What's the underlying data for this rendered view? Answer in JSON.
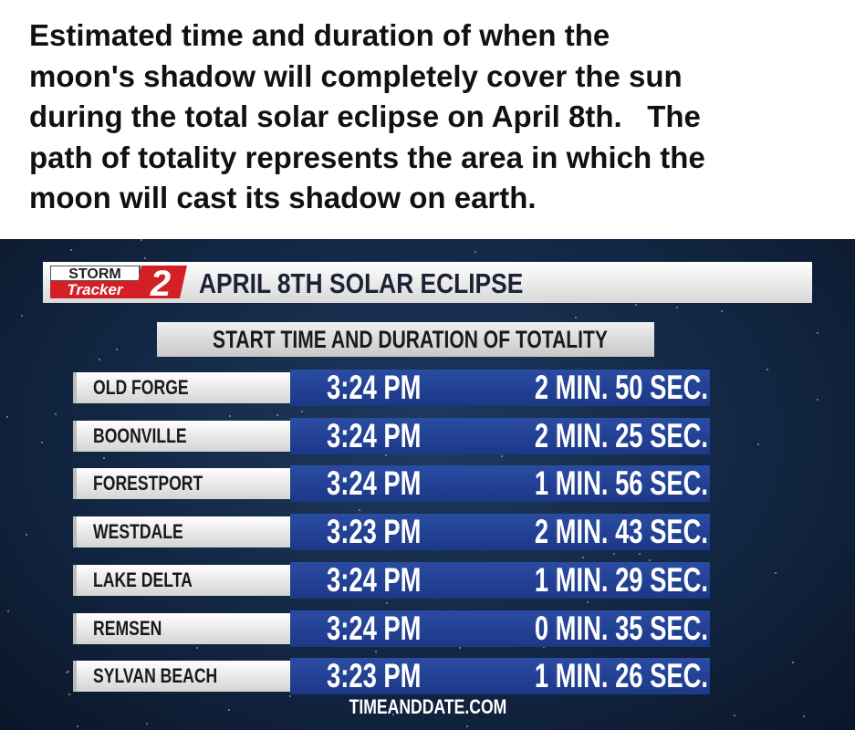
{
  "caption_lines": [
    "Estimated time and duration of when the",
    "moon's shadow will completely cover the sun",
    "during the total solar eclipse on April 8th.   The",
    "path of totality represents the area in which the",
    "moon will cast its shadow on earth."
  ],
  "graphic": {
    "logo": {
      "line1": "STORM",
      "line2": "Tracker",
      "number": "2"
    },
    "title": "APRIL 8TH SOLAR ECLIPSE",
    "subtitle": "START TIME AND DURATION OF TOTALITY",
    "rows": [
      [
        "OLD FORGE",
        "3:24 PM",
        "2 MIN. 50 SEC."
      ],
      [
        "BOONVILLE",
        "3:24 PM",
        "2 MIN. 25 SEC."
      ],
      [
        "FORESTPORT",
        "3:24 PM",
        "1 MIN. 56 SEC."
      ],
      [
        "WESTDALE",
        "3:23 PM",
        "2 MIN. 43 SEC."
      ],
      [
        "LAKE DELTA",
        "3:24 PM",
        "1 MIN. 29 SEC."
      ],
      [
        "REMSEN",
        "3:24 PM",
        "0 MIN. 35 SEC."
      ],
      [
        "SYLVAN BEACH",
        "3:23 PM",
        "1 MIN. 26 SEC."
      ]
    ],
    "source": "TIMEANDDATE.COM"
  }
}
